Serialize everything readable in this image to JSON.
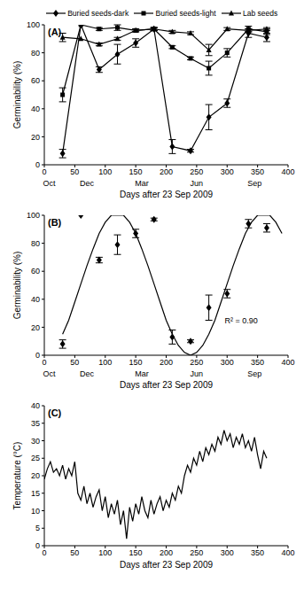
{
  "chart_data": [
    {
      "type": "line",
      "panel_label": "(A)",
      "x_label": "Days after 23 Sep 2009",
      "y_label": "Germinability (%)",
      "xlim": [
        0,
        400
      ],
      "xticks": [
        0,
        50,
        100,
        150,
        200,
        250,
        300,
        350,
        400
      ],
      "ylim": [
        0,
        100
      ],
      "yticks": [
        0,
        20,
        40,
        60,
        80,
        100
      ],
      "month_labels": [
        {
          "value": 8,
          "label": "Oct"
        },
        {
          "value": 70,
          "label": "Dec"
        },
        {
          "value": 160,
          "label": "Mar"
        },
        {
          "value": 250,
          "label": "Jun"
        },
        {
          "value": 345,
          "label": "Sep"
        }
      ],
      "legend": "top",
      "x": [
        30,
        60,
        90,
        120,
        150,
        180,
        210,
        240,
        270,
        300,
        335,
        365
      ],
      "series": [
        {
          "name": "Buried seeds-dark",
          "color": "#000000",
          "marker": "diamond",
          "values": [
            8,
            100,
            68,
            79,
            87,
            97,
            13,
            10,
            34,
            44,
            94,
            91
          ],
          "errors": [
            3,
            0,
            2,
            7,
            3,
            1,
            5,
            1,
            9,
            3,
            3,
            3
          ]
        },
        {
          "name": "Buried seeds-light",
          "color": "#000000",
          "marker": "square",
          "values": [
            50,
            100,
            97,
            98,
            96,
            97,
            84,
            76,
            69,
            80,
            97,
            95
          ],
          "errors": [
            5,
            0,
            1,
            2,
            1,
            1,
            1,
            1,
            5,
            3,
            2,
            2
          ]
        },
        {
          "name": "Lab seeds",
          "color": "#000000",
          "marker": "triangle",
          "values": [
            91,
            90,
            86,
            90,
            96,
            97,
            95,
            94,
            82,
            97,
            96,
            97
          ],
          "errors": [
            3,
            0,
            1,
            1,
            1,
            1,
            1,
            1,
            4,
            1,
            1,
            1
          ]
        }
      ]
    },
    {
      "type": "scatter",
      "panel_label": "(B)",
      "x_label": "Days after 23 Sep 2009",
      "y_label": "Germinability (%)",
      "xlim": [
        0,
        400
      ],
      "xticks": [
        0,
        50,
        100,
        150,
        200,
        250,
        300,
        350,
        400
      ],
      "ylim": [
        0,
        100
      ],
      "yticks": [
        0,
        20,
        40,
        60,
        80,
        100
      ],
      "month_labels": [
        {
          "value": 8,
          "label": "Oct"
        },
        {
          "value": 70,
          "label": "Dec"
        },
        {
          "value": 160,
          "label": "Mar"
        },
        {
          "value": 250,
          "label": "Jun"
        },
        {
          "value": 345,
          "label": "Sep"
        }
      ],
      "annotations": [
        "R² = 0.90"
      ],
      "series": [
        {
          "type": "scatter",
          "color": "#000000",
          "marker": "diamond",
          "x": [
            30,
            60,
            90,
            120,
            150,
            180,
            210,
            240,
            270,
            300,
            335,
            365
          ],
          "values": [
            8,
            100,
            68,
            79,
            87,
            97,
            13,
            10,
            34,
            44,
            94,
            91
          ],
          "errors": [
            3,
            0,
            2,
            7,
            3,
            1,
            5,
            1,
            9,
            3,
            3,
            3
          ]
        },
        {
          "type": "line",
          "color": "#000000",
          "x": [
            30,
            40,
            50,
            60,
            70,
            80,
            90,
            100,
            110,
            120,
            130,
            140,
            150,
            160,
            170,
            180,
            190,
            200,
            210,
            220,
            230,
            240,
            250,
            260,
            270,
            280,
            290,
            300,
            310,
            320,
            330,
            340,
            350,
            360,
            370,
            380,
            390
          ],
          "values": [
            15,
            25,
            38,
            51,
            64,
            76,
            87,
            95,
            100,
            100,
            100,
            95,
            87,
            76,
            64,
            51,
            38,
            25,
            15,
            7,
            2,
            0,
            2,
            7,
            15,
            25,
            38,
            51,
            64,
            76,
            87,
            95,
            100,
            100,
            100,
            95,
            87
          ]
        }
      ]
    },
    {
      "type": "line",
      "panel_label": "(C)",
      "x_label": "Days after 23 Sep 2009",
      "y_label": "Temperature (°C)",
      "xlim": [
        0,
        400
      ],
      "xticks": [
        0,
        50,
        100,
        150,
        200,
        250,
        300,
        350,
        400
      ],
      "ylim": [
        0,
        40
      ],
      "yticks": [
        0,
        5,
        10,
        15,
        20,
        25,
        30,
        35,
        40
      ],
      "color": "#000000",
      "x": [
        0,
        5,
        10,
        15,
        20,
        25,
        30,
        35,
        40,
        45,
        50,
        55,
        60,
        65,
        70,
        75,
        80,
        85,
        90,
        95,
        100,
        105,
        110,
        115,
        120,
        125,
        130,
        135,
        140,
        145,
        150,
        155,
        160,
        165,
        170,
        175,
        180,
        185,
        190,
        195,
        200,
        205,
        210,
        215,
        220,
        225,
        230,
        235,
        240,
        245,
        250,
        255,
        260,
        265,
        270,
        275,
        280,
        285,
        290,
        295,
        300,
        305,
        310,
        315,
        320,
        325,
        330,
        335,
        340,
        345,
        350,
        355,
        360,
        365
      ],
      "values": [
        19,
        22,
        24,
        21,
        22,
        20,
        23,
        19,
        22,
        20,
        24,
        15,
        13,
        17,
        12,
        15,
        11,
        14,
        16,
        10,
        14,
        8,
        12,
        9,
        13,
        6,
        10,
        2,
        11,
        7,
        12,
        9,
        14,
        10,
        8,
        13,
        9,
        12,
        14,
        10,
        13,
        11,
        15,
        13,
        17,
        15,
        20,
        23,
        21,
        25,
        23,
        27,
        24,
        28,
        26,
        29,
        27,
        31,
        29,
        33,
        30,
        32,
        28,
        31,
        29,
        32,
        28,
        30,
        27,
        31,
        26,
        22,
        27,
        25
      ]
    }
  ]
}
